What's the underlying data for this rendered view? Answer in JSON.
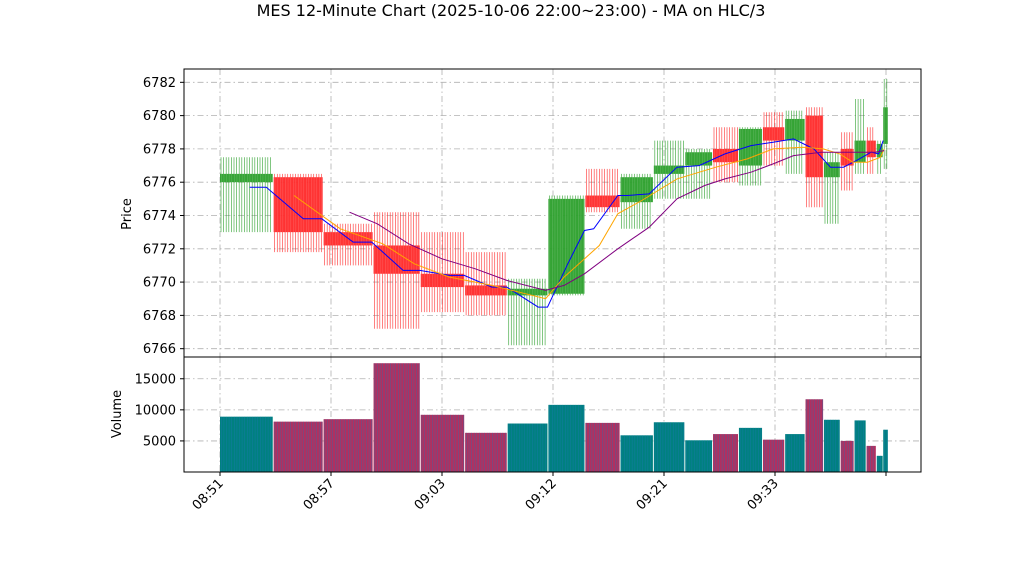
{
  "chart_data": [
    {
      "type": "candlestick",
      "panel": "price",
      "title": "MES 12-Minute Chart (2025-10-06 22:00~23:00) - MA on HLC/3",
      "ylabel": "Price",
      "xlabel": "",
      "ylim": [
        6765.5,
        6782.8
      ],
      "yticks": [
        "6766",
        "6768",
        "6770",
        "6772",
        "6774",
        "6776",
        "6778",
        "6780",
        "6782"
      ],
      "grid": true,
      "up_color": "#2ca02c",
      "down_color": "#ff2a2a",
      "bars": [
        {
          "t": 0.0,
          "w": 2.85,
          "o": 6776.0,
          "h": 6777.5,
          "l": 6773.0,
          "c": 6776.5
        },
        {
          "t": 2.9,
          "w": 2.65,
          "o": 6776.3,
          "h": 6776.5,
          "l": 6771.8,
          "c": 6773.0
        },
        {
          "t": 5.6,
          "w": 2.65,
          "o": 6773.0,
          "h": 6773.5,
          "l": 6771.0,
          "c": 6772.2
        },
        {
          "t": 8.3,
          "w": 2.5,
          "o": 6772.2,
          "h": 6774.2,
          "l": 6767.2,
          "c": 6770.5
        },
        {
          "t": 10.85,
          "w": 2.35,
          "o": 6770.5,
          "h": 6773.0,
          "l": 6768.2,
          "c": 6769.7
        },
        {
          "t": 13.25,
          "w": 2.25,
          "o": 6769.8,
          "h": 6771.8,
          "l": 6768.0,
          "c": 6769.2
        },
        {
          "t": 15.55,
          "w": 2.15,
          "o": 6769.2,
          "h": 6770.2,
          "l": 6766.2,
          "c": 6769.6
        },
        {
          "t": 17.75,
          "w": 1.95,
          "o": 6769.3,
          "h": 6775.2,
          "l": 6769.2,
          "c": 6775.0
        },
        {
          "t": 19.75,
          "w": 1.85,
          "o": 6775.2,
          "h": 6776.8,
          "l": 6774.2,
          "c": 6774.5
        },
        {
          "t": 21.65,
          "w": 1.75,
          "o": 6774.8,
          "h": 6776.5,
          "l": 6773.2,
          "c": 6776.3
        },
        {
          "t": 23.45,
          "w": 1.65,
          "o": 6776.5,
          "h": 6778.5,
          "l": 6775.0,
          "c": 6777.0
        },
        {
          "t": 25.15,
          "w": 1.45,
          "o": 6777.0,
          "h": 6778.0,
          "l": 6775.0,
          "c": 6777.8
        },
        {
          "t": 26.65,
          "w": 1.35,
          "o": 6778.0,
          "h": 6779.3,
          "l": 6776.0,
          "c": 6777.2
        },
        {
          "t": 28.05,
          "w": 1.25,
          "o": 6777.0,
          "h": 6779.3,
          "l": 6775.8,
          "c": 6779.2
        },
        {
          "t": 29.35,
          "w": 1.15,
          "o": 6779.3,
          "h": 6780.2,
          "l": 6777.0,
          "c": 6778.5
        },
        {
          "t": 30.55,
          "w": 1.05,
          "o": 6778.5,
          "h": 6780.3,
          "l": 6776.5,
          "c": 6779.8
        },
        {
          "t": 31.65,
          "w": 0.95,
          "o": 6780.0,
          "h": 6780.5,
          "l": 6774.5,
          "c": 6776.3
        },
        {
          "t": 32.65,
          "w": 0.85,
          "o": 6776.3,
          "h": 6777.8,
          "l": 6773.5,
          "c": 6777.2
        },
        {
          "t": 33.55,
          "w": 0.7,
          "o": 6778.0,
          "h": 6779.0,
          "l": 6775.5,
          "c": 6777.0
        },
        {
          "t": 34.3,
          "w": 0.6,
          "o": 6777.2,
          "h": 6781.0,
          "l": 6776.5,
          "c": 6778.5
        },
        {
          "t": 34.95,
          "w": 0.5,
          "o": 6778.5,
          "h": 6779.3,
          "l": 6776.5,
          "c": 6777.5
        },
        {
          "t": 35.5,
          "w": 0.32,
          "o": 6777.5,
          "h": 6778.5,
          "l": 6776.5,
          "c": 6778.3
        },
        {
          "t": 35.85,
          "w": 0.25,
          "o": 6778.3,
          "h": 6782.2,
          "l": 6776.8,
          "c": 6780.5
        }
      ],
      "ma_series": [
        {
          "color": "#0000ff",
          "points": [
            [
              1.6,
              6775.7
            ],
            [
              2.5,
              6775.7
            ],
            [
              4.5,
              6773.8
            ],
            [
              5.5,
              6773.8
            ],
            [
              7.2,
              6772.4
            ],
            [
              8.2,
              6772.4
            ],
            [
              9.9,
              6770.7
            ],
            [
              10.8,
              6770.7
            ],
            [
              12.4,
              6770.4
            ],
            [
              13.2,
              6770.4
            ],
            [
              14.7,
              6769.7
            ],
            [
              15.5,
              6769.7
            ],
            [
              17.2,
              6768.5
            ],
            [
              17.7,
              6768.5
            ],
            [
              18.8,
              6771.1
            ],
            [
              19.7,
              6773.1
            ],
            [
              20.2,
              6773.2
            ],
            [
              21.5,
              6775.2
            ],
            [
              22.0,
              6775.2
            ],
            [
              23.2,
              6775.3
            ],
            [
              24.7,
              6776.9
            ],
            [
              25.9,
              6777.0
            ],
            [
              27.3,
              6777.7
            ],
            [
              28.7,
              6778.2
            ],
            [
              29.9,
              6778.4
            ],
            [
              31.0,
              6778.6
            ],
            [
              32.1,
              6778.0
            ],
            [
              33.0,
              6776.9
            ],
            [
              33.7,
              6776.9
            ],
            [
              34.4,
              6777.3
            ],
            [
              35.2,
              6777.8
            ],
            [
              35.6,
              6777.7
            ],
            [
              35.85,
              6778.5
            ]
          ]
        },
        {
          "color": "#ffa500",
          "points": [
            [
              4.0,
              6775.2
            ],
            [
              6.5,
              6773.2
            ],
            [
              8.8,
              6772.3
            ],
            [
              10.5,
              6771.1
            ],
            [
              12.4,
              6770.3
            ],
            [
              14.7,
              6769.8
            ],
            [
              16.5,
              6769.3
            ],
            [
              17.6,
              6769.0
            ],
            [
              18.6,
              6770.3
            ],
            [
              20.5,
              6772.2
            ],
            [
              21.5,
              6774.1
            ],
            [
              22.8,
              6774.9
            ],
            [
              24.7,
              6776.2
            ],
            [
              26.8,
              6776.9
            ],
            [
              28.5,
              6777.4
            ],
            [
              29.9,
              6778.0
            ],
            [
              31.5,
              6778.1
            ],
            [
              32.6,
              6778.0
            ],
            [
              33.5,
              6777.7
            ],
            [
              34.2,
              6777.2
            ],
            [
              35.0,
              6777.2
            ],
            [
              35.7,
              6777.5
            ],
            [
              35.9,
              6778.0
            ]
          ]
        },
        {
          "color": "#800080",
          "points": [
            [
              7.0,
              6774.2
            ],
            [
              8.5,
              6773.5
            ],
            [
              10.2,
              6772.3
            ],
            [
              12.0,
              6771.4
            ],
            [
              13.8,
              6770.8
            ],
            [
              15.5,
              6770.1
            ],
            [
              17.6,
              6769.5
            ],
            [
              18.6,
              6769.8
            ],
            [
              19.7,
              6770.5
            ],
            [
              21.5,
              6772.0
            ],
            [
              23.2,
              6773.3
            ],
            [
              24.7,
              6775.0
            ],
            [
              26.2,
              6775.8
            ],
            [
              27.3,
              6776.2
            ],
            [
              28.7,
              6776.6
            ],
            [
              29.9,
              6777.1
            ],
            [
              31.0,
              6777.6
            ],
            [
              32.5,
              6777.8
            ],
            [
              33.7,
              6777.8
            ],
            [
              34.6,
              6777.8
            ],
            [
              35.4,
              6777.8
            ],
            [
              35.9,
              6777.9
            ]
          ]
        }
      ]
    },
    {
      "type": "bar",
      "panel": "volume",
      "ylabel": "Volume",
      "ylim": [
        0,
        18500
      ],
      "yticks": [
        "5000",
        "10000",
        "15000"
      ],
      "xticks": [
        {
          "t": 0,
          "label": "08:51"
        },
        {
          "t": 6,
          "label": "08:57"
        },
        {
          "t": 12,
          "label": "09:03"
        },
        {
          "t": 18,
          "label": "09:12"
        },
        {
          "t": 24,
          "label": "09:21"
        },
        {
          "t": 30,
          "label": "09:33"
        }
      ],
      "up_color": "#008080",
      "down_color": "#b03060",
      "values": [
        8900,
        8100,
        8500,
        17500,
        9200,
        6300,
        7800,
        10800,
        7900,
        5900,
        8000,
        5100,
        6100,
        7100,
        5200,
        6100,
        11700,
        8400,
        5000,
        8300,
        4200,
        2600,
        6800
      ]
    }
  ]
}
